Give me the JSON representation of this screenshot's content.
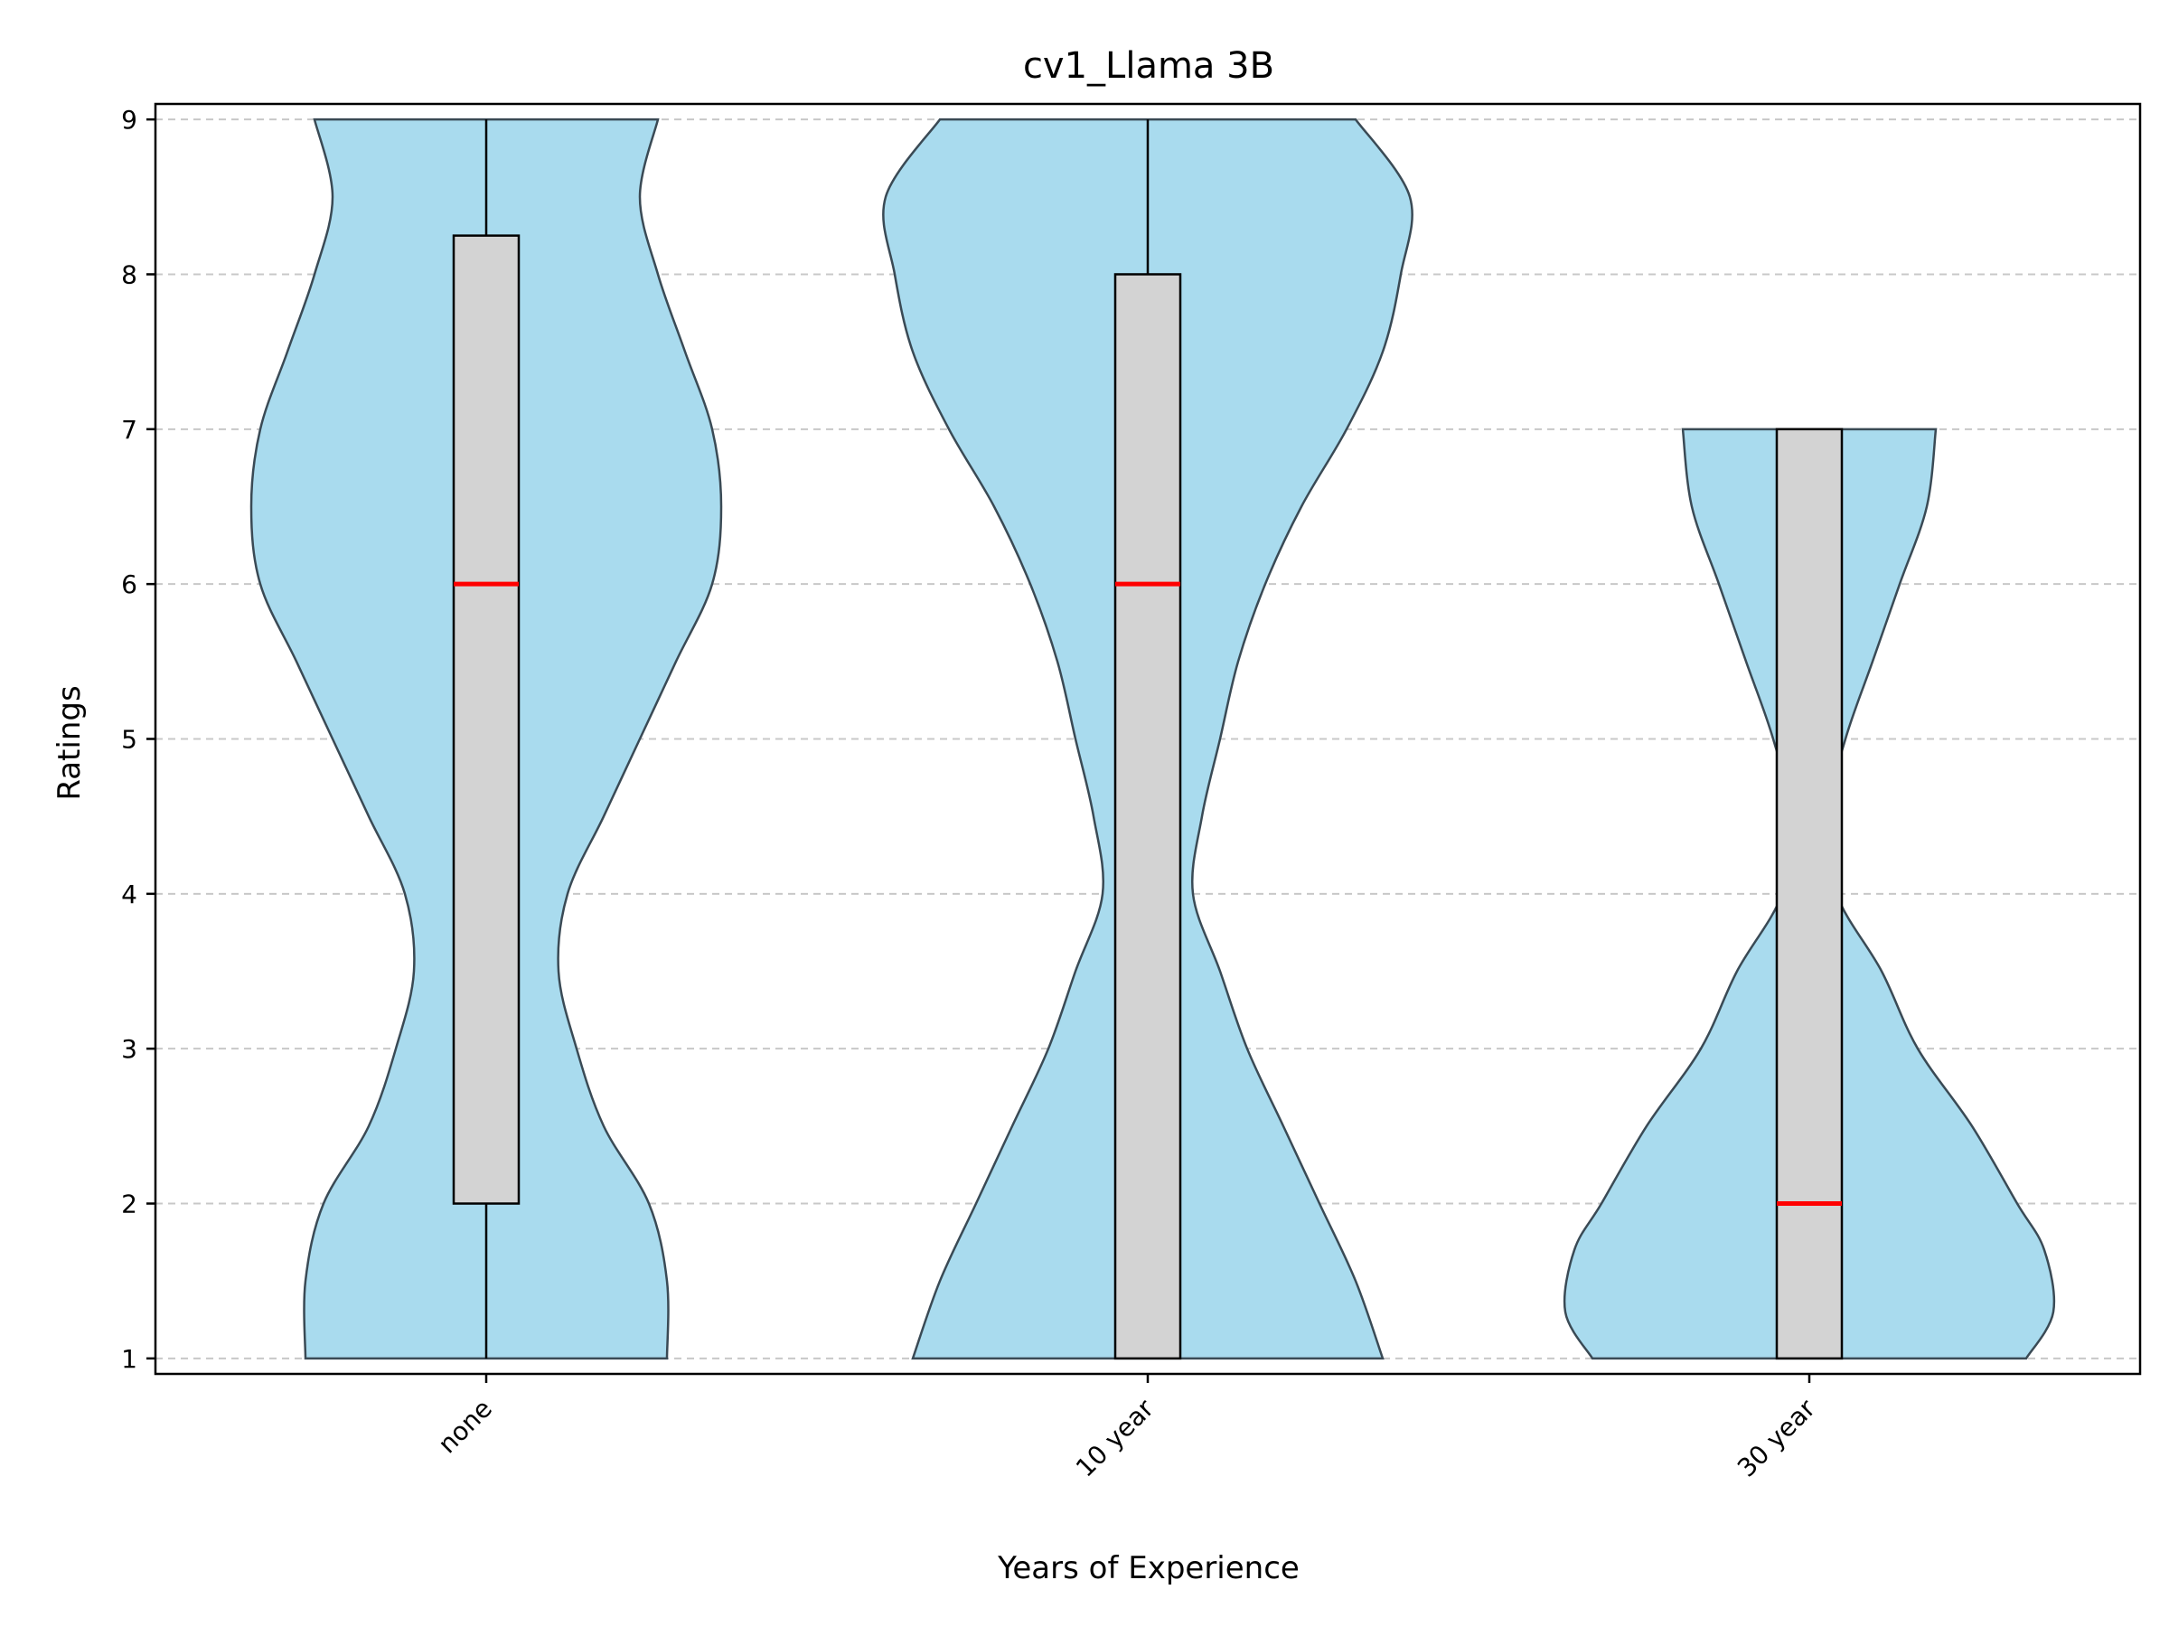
{
  "chart_data": {
    "type": "violin",
    "title": "cv1_Llama 3B",
    "xlabel": "Years of Experience",
    "ylabel": "Ratings",
    "ylim": [
      0.9,
      9.1
    ],
    "yticks": [
      1,
      2,
      3,
      4,
      5,
      6,
      7,
      8,
      9
    ],
    "grid": "horizontal dashed",
    "categories": [
      "none",
      "10 year",
      "30 year"
    ],
    "series": [
      {
        "category": "none",
        "min": 1,
        "q1": 2,
        "median": 6,
        "q3": 8.25,
        "max": 9,
        "density": [
          [
            1,
            0.2
          ],
          [
            1.5,
            0.2
          ],
          [
            2,
            0.18
          ],
          [
            2.5,
            0.13
          ],
          [
            3,
            0.1
          ],
          [
            3.5,
            0.08
          ],
          [
            4,
            0.09
          ],
          [
            4.5,
            0.13
          ],
          [
            5,
            0.17
          ],
          [
            5.5,
            0.21
          ],
          [
            6,
            0.25
          ],
          [
            6.5,
            0.26
          ],
          [
            7,
            0.25
          ],
          [
            7.5,
            0.22
          ],
          [
            8,
            0.19
          ],
          [
            8.5,
            0.17
          ],
          [
            9,
            0.19
          ]
        ]
      },
      {
        "category": "10 year",
        "min": 1,
        "q1": 1,
        "median": 6,
        "q3": 8,
        "max": 9,
        "density": [
          [
            1,
            0.26
          ],
          [
            1.5,
            0.23
          ],
          [
            2,
            0.19
          ],
          [
            2.5,
            0.15
          ],
          [
            3,
            0.11
          ],
          [
            3.5,
            0.08
          ],
          [
            4,
            0.05
          ],
          [
            4.5,
            0.06
          ],
          [
            5,
            0.08
          ],
          [
            5.5,
            0.1
          ],
          [
            6,
            0.13
          ],
          [
            6.5,
            0.17
          ],
          [
            7,
            0.22
          ],
          [
            7.5,
            0.26
          ],
          [
            8,
            0.28
          ],
          [
            8.5,
            0.29
          ],
          [
            9,
            0.23
          ]
        ]
      },
      {
        "category": "30 year",
        "min": 1,
        "q1": 1,
        "median": 2,
        "q3": 7,
        "max": 7,
        "density": [
          [
            1,
            0.24
          ],
          [
            1.3,
            0.27
          ],
          [
            1.7,
            0.26
          ],
          [
            2,
            0.23
          ],
          [
            2.5,
            0.18
          ],
          [
            3,
            0.12
          ],
          [
            3.5,
            0.08
          ],
          [
            4,
            0.03
          ],
          [
            4.5,
            0.02
          ],
          [
            5,
            0.04
          ],
          [
            5.5,
            0.07
          ],
          [
            6,
            0.1
          ],
          [
            6.5,
            0.13
          ],
          [
            7,
            0.14
          ]
        ]
      }
    ],
    "colors": {
      "violin_fill": "#a9dbee",
      "violin_edge": "#3a4a55",
      "box_fill": "#d3d3d3",
      "median": "#ff0000",
      "grid": "#c8c8c8"
    }
  }
}
